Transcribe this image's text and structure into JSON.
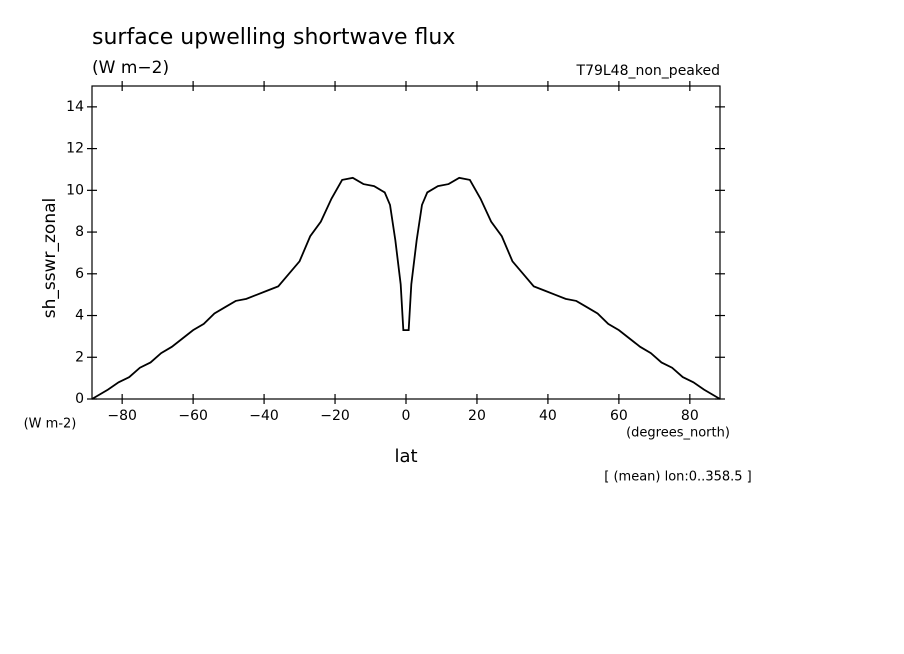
{
  "chart_data": {
    "type": "line",
    "title": "surface upwelling shortwave flux",
    "subtitle": "(W m−2)",
    "dataset": "T79L48_non_peaked",
    "y_label": "sh_sswr_zonal",
    "y_units": "(W m-2)",
    "x_units": "(degrees_north)",
    "x_label": "lat",
    "note": "[ (mean) lon:0..358.5 ]",
    "x": [
      -88.5,
      -87,
      -84,
      -81,
      -78,
      -75,
      -72,
      -69,
      -66,
      -63,
      -60,
      -57,
      -54,
      -51,
      -48,
      -45,
      -42,
      -39,
      -36,
      -33,
      -30,
      -27,
      -24,
      -21,
      -18,
      -15,
      -12,
      -9,
      -6,
      -4.5,
      -3,
      -1.5,
      -0.75,
      0.75,
      1.5,
      3,
      4.5,
      6,
      9,
      12,
      15,
      18,
      21,
      24,
      27,
      30,
      33,
      36,
      39,
      42,
      45,
      48,
      51,
      54,
      57,
      60,
      63,
      66,
      69,
      72,
      75,
      78,
      81,
      84,
      87,
      88.5
    ],
    "series": [
      {
        "color": "#000000",
        "values": [
          0,
          0.15,
          0.45,
          0.8,
          1.05,
          1.5,
          1.75,
          2.2,
          2.5,
          2.9,
          3.3,
          3.6,
          4.1,
          4.4,
          4.7,
          4.8,
          5.0,
          5.2,
          5.4,
          6.0,
          6.6,
          7.8,
          8.5,
          9.6,
          10.5,
          10.6,
          10.3,
          10.2,
          9.9,
          9.3,
          7.6,
          5.5,
          3.3,
          3.3,
          5.5,
          7.6,
          9.3,
          9.9,
          10.2,
          10.3,
          10.6,
          10.5,
          9.6,
          8.5,
          7.8,
          6.6,
          6.0,
          5.4,
          5.2,
          5.0,
          4.8,
          4.7,
          4.4,
          4.1,
          3.6,
          3.3,
          2.9,
          2.5,
          2.2,
          1.75,
          1.5,
          1.05,
          0.8,
          0.45,
          0.15,
          0
        ]
      }
    ],
    "xlim": [
      -88.5,
      88.5
    ],
    "xticks": [
      {
        "value": -80,
        "label": "−80"
      },
      {
        "value": -60,
        "label": "−60"
      },
      {
        "value": -40,
        "label": "−40"
      },
      {
        "value": -20,
        "label": "−20"
      },
      0,
      20,
      40,
      60,
      80
    ],
    "ylim": [
      0,
      15
    ],
    "yticks": [
      0,
      2,
      4,
      6,
      8,
      10,
      12,
      14
    ]
  }
}
